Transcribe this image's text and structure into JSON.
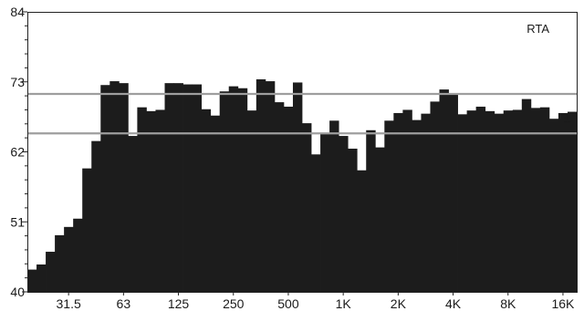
{
  "chart_data": {
    "type": "bar",
    "title": "RTA",
    "tolerance_symbol": "±",
    "ylim": [
      40,
      84
    ],
    "yticks": [
      {
        "value": 84,
        "label": "84"
      },
      {
        "value": 73,
        "label": "73"
      },
      {
        "value": 62,
        "label": "62"
      },
      {
        "value": 51,
        "label": "51"
      },
      {
        "value": 40,
        "label": "40"
      }
    ],
    "xticks": [
      {
        "band": 4,
        "label": "31.5"
      },
      {
        "band": 10,
        "label": "63"
      },
      {
        "band": 16,
        "label": "125"
      },
      {
        "band": 22,
        "label": "250"
      },
      {
        "band": 28,
        "label": "500"
      },
      {
        "band": 34,
        "label": "1K"
      },
      {
        "band": 40,
        "label": "2K"
      },
      {
        "band": 46,
        "label": "4K"
      },
      {
        "band": 52,
        "label": "8K"
      },
      {
        "band": 58,
        "label": "16K"
      }
    ],
    "tolerance_band": {
      "upper": 71.1,
      "lower": 64.9
    },
    "values": [
      43.5,
      44.3,
      46.3,
      48.9,
      50.2,
      51.5,
      59.4,
      63.7,
      72.5,
      73.1,
      72.8,
      64.5,
      69.0,
      68.4,
      68.6,
      72.8,
      72.8,
      72.6,
      72.6,
      68.7,
      67.7,
      71.5,
      72.3,
      72.0,
      68.5,
      73.4,
      73.1,
      69.8,
      69.1,
      72.9,
      66.5,
      61.6,
      64.9,
      66.9,
      64.5,
      62.5,
      59.1,
      65.4,
      62.7,
      66.9,
      68.1,
      68.6,
      67.0,
      68.0,
      69.9,
      71.8,
      71.0,
      67.9,
      68.5,
      69.1,
      68.4,
      68.0,
      68.5,
      68.6,
      70.3,
      68.9,
      69.0,
      67.2,
      68.1,
      68.3
    ]
  }
}
